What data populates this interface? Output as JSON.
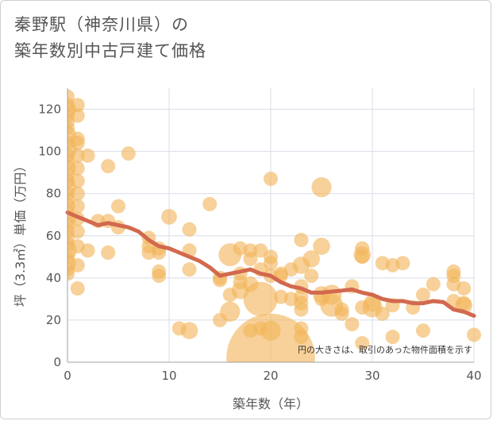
{
  "title_line1": "秦野駅（神奈川県）の",
  "title_line2": "築年数別中古戸建て価格",
  "chart_data": {
    "type": "scatter",
    "title": "秦野駅（神奈川県）の築年数別中古戸建て価格",
    "xlabel": "築年数（年）",
    "ylabel": "坪（3.3㎡）単価（万円）",
    "xlim": [
      0,
      40
    ],
    "ylim": [
      0,
      130
    ],
    "xticks": [
      0,
      10,
      20,
      30,
      40
    ],
    "yticks": [
      0,
      20,
      40,
      60,
      80,
      100,
      120
    ],
    "grid": true,
    "note": "円の大きさは、取引のあった物件面積を示す",
    "colors": {
      "bubble": "#f2b45a",
      "trend": "#d2694e",
      "grid": "#d8dde6",
      "axis": "#a0a0a0",
      "text": "#555555"
    },
    "points": [
      {
        "x": 0,
        "y": 126,
        "s": 1
      },
      {
        "x": 0,
        "y": 122,
        "s": 1
      },
      {
        "x": 0,
        "y": 120,
        "s": 1.2
      },
      {
        "x": 0,
        "y": 117,
        "s": 1
      },
      {
        "x": 0,
        "y": 114,
        "s": 1
      },
      {
        "x": 0,
        "y": 111,
        "s": 1
      },
      {
        "x": 0,
        "y": 108,
        "s": 1.2
      },
      {
        "x": 0,
        "y": 104,
        "s": 1
      },
      {
        "x": 0,
        "y": 101,
        "s": 1.3
      },
      {
        "x": 0,
        "y": 98,
        "s": 1
      },
      {
        "x": 0,
        "y": 95,
        "s": 1
      },
      {
        "x": 0,
        "y": 92,
        "s": 1.2
      },
      {
        "x": 0,
        "y": 89,
        "s": 1
      },
      {
        "x": 0,
        "y": 86,
        "s": 1
      },
      {
        "x": 0,
        "y": 83,
        "s": 1.2
      },
      {
        "x": 0,
        "y": 80,
        "s": 1
      },
      {
        "x": 0,
        "y": 77,
        "s": 1
      },
      {
        "x": 0,
        "y": 74,
        "s": 1.1
      },
      {
        "x": 0,
        "y": 71,
        "s": 1
      },
      {
        "x": 0,
        "y": 68,
        "s": 1.2
      },
      {
        "x": 0,
        "y": 65,
        "s": 1
      },
      {
        "x": 0,
        "y": 62,
        "s": 1
      },
      {
        "x": 0,
        "y": 59,
        "s": 1
      },
      {
        "x": 0,
        "y": 56,
        "s": 1
      },
      {
        "x": 0,
        "y": 53,
        "s": 1.3
      },
      {
        "x": 0,
        "y": 50,
        "s": 1
      },
      {
        "x": 0,
        "y": 47,
        "s": 1.2
      },
      {
        "x": 0,
        "y": 44,
        "s": 1
      },
      {
        "x": 0,
        "y": 42,
        "s": 1
      },
      {
        "x": 1,
        "y": 122,
        "s": 1
      },
      {
        "x": 1,
        "y": 117,
        "s": 1
      },
      {
        "x": 1,
        "y": 106,
        "s": 1
      },
      {
        "x": 1,
        "y": 104,
        "s": 1
      },
      {
        "x": 1,
        "y": 98,
        "s": 1
      },
      {
        "x": 1,
        "y": 92,
        "s": 1
      },
      {
        "x": 1,
        "y": 86,
        "s": 1
      },
      {
        "x": 1,
        "y": 80,
        "s": 1
      },
      {
        "x": 1,
        "y": 74,
        "s": 1
      },
      {
        "x": 1,
        "y": 68,
        "s": 1
      },
      {
        "x": 1,
        "y": 62,
        "s": 1
      },
      {
        "x": 1,
        "y": 55,
        "s": 1
      },
      {
        "x": 1,
        "y": 46,
        "s": 1
      },
      {
        "x": 1,
        "y": 35,
        "s": 1
      },
      {
        "x": 2,
        "y": 98,
        "s": 1
      },
      {
        "x": 2,
        "y": 53,
        "s": 1
      },
      {
        "x": 3,
        "y": 67,
        "s": 1
      },
      {
        "x": 4,
        "y": 93,
        "s": 1
      },
      {
        "x": 4,
        "y": 67,
        "s": 1
      },
      {
        "x": 4,
        "y": 52,
        "s": 1
      },
      {
        "x": 5,
        "y": 74,
        "s": 1
      },
      {
        "x": 5,
        "y": 64,
        "s": 1
      },
      {
        "x": 6,
        "y": 99,
        "s": 1
      },
      {
        "x": 8,
        "y": 59,
        "s": 1
      },
      {
        "x": 8,
        "y": 55,
        "s": 1
      },
      {
        "x": 8,
        "y": 52,
        "s": 1
      },
      {
        "x": 9,
        "y": 54,
        "s": 1
      },
      {
        "x": 9,
        "y": 52,
        "s": 1
      },
      {
        "x": 9,
        "y": 43,
        "s": 1
      },
      {
        "x": 9,
        "y": 41,
        "s": 1
      },
      {
        "x": 10,
        "y": 69,
        "s": 1.1
      },
      {
        "x": 11,
        "y": 16,
        "s": 1
      },
      {
        "x": 12,
        "y": 63,
        "s": 1
      },
      {
        "x": 12,
        "y": 53,
        "s": 1
      },
      {
        "x": 12,
        "y": 44,
        "s": 1
      },
      {
        "x": 12,
        "y": 15,
        "s": 1.2
      },
      {
        "x": 14,
        "y": 75,
        "s": 1
      },
      {
        "x": 15,
        "y": 40,
        "s": 1
      },
      {
        "x": 15,
        "y": 39,
        "s": 1
      },
      {
        "x": 15,
        "y": 20,
        "s": 1
      },
      {
        "x": 16,
        "y": 51,
        "s": 1.6
      },
      {
        "x": 16,
        "y": 32,
        "s": 1
      },
      {
        "x": 16,
        "y": 24,
        "s": 1.4
      },
      {
        "x": 17,
        "y": 54,
        "s": 1
      },
      {
        "x": 17,
        "y": 42,
        "s": 1
      },
      {
        "x": 17,
        "y": 38,
        "s": 1
      },
      {
        "x": 17,
        "y": 34,
        "s": 1.2
      },
      {
        "x": 18,
        "y": 53,
        "s": 1
      },
      {
        "x": 18,
        "y": 49,
        "s": 1
      },
      {
        "x": 18,
        "y": 37,
        "s": 1.1
      },
      {
        "x": 18,
        "y": 15,
        "s": 1
      },
      {
        "x": 19,
        "y": 53,
        "s": 1
      },
      {
        "x": 19,
        "y": 44,
        "s": 1
      },
      {
        "x": 19,
        "y": 30,
        "s": 2.4
      },
      {
        "x": 19,
        "y": 16,
        "s": 1
      },
      {
        "x": 20,
        "y": 87,
        "s": 1
      },
      {
        "x": 20,
        "y": 50,
        "s": 1
      },
      {
        "x": 20,
        "y": 47,
        "s": 1
      },
      {
        "x": 20,
        "y": 41,
        "s": 1
      },
      {
        "x": 20,
        "y": 15,
        "s": 1.4
      },
      {
        "x": 20,
        "y": 2,
        "s": 6.2
      },
      {
        "x": 21,
        "y": 42,
        "s": 1
      },
      {
        "x": 21,
        "y": 41,
        "s": 1
      },
      {
        "x": 21,
        "y": 31,
        "s": 1
      },
      {
        "x": 22,
        "y": 44,
        "s": 1
      },
      {
        "x": 22,
        "y": 30,
        "s": 1
      },
      {
        "x": 23,
        "y": 58,
        "s": 1
      },
      {
        "x": 23,
        "y": 46,
        "s": 1.2
      },
      {
        "x": 23,
        "y": 36,
        "s": 1
      },
      {
        "x": 23,
        "y": 31,
        "s": 1
      },
      {
        "x": 23,
        "y": 28,
        "s": 1
      },
      {
        "x": 23,
        "y": 25,
        "s": 1
      },
      {
        "x": 23,
        "y": 16,
        "s": 1
      },
      {
        "x": 23,
        "y": 12,
        "s": 1
      },
      {
        "x": 24,
        "y": 49,
        "s": 1.2
      },
      {
        "x": 24,
        "y": 41,
        "s": 1
      },
      {
        "x": 25,
        "y": 83,
        "s": 1.4
      },
      {
        "x": 25,
        "y": 55,
        "s": 1.2
      },
      {
        "x": 25,
        "y": 32,
        "s": 1.2
      },
      {
        "x": 25,
        "y": 30,
        "s": 1
      },
      {
        "x": 26,
        "y": 32,
        "s": 1.4
      },
      {
        "x": 26,
        "y": 27,
        "s": 1.6
      },
      {
        "x": 27,
        "y": 25,
        "s": 1
      },
      {
        "x": 27,
        "y": 23,
        "s": 1
      },
      {
        "x": 28,
        "y": 36,
        "s": 1
      },
      {
        "x": 28,
        "y": 18,
        "s": 1
      },
      {
        "x": 29,
        "y": 54,
        "s": 1
      },
      {
        "x": 29,
        "y": 51,
        "s": 1.2
      },
      {
        "x": 29,
        "y": 50,
        "s": 1
      },
      {
        "x": 29,
        "y": 26,
        "s": 1
      },
      {
        "x": 29,
        "y": 9,
        "s": 1
      },
      {
        "x": 30,
        "y": 28,
        "s": 1.2
      },
      {
        "x": 30,
        "y": 26,
        "s": 1.4
      },
      {
        "x": 31,
        "y": 47,
        "s": 1
      },
      {
        "x": 31,
        "y": 23,
        "s": 1
      },
      {
        "x": 32,
        "y": 46,
        "s": 1
      },
      {
        "x": 32,
        "y": 27,
        "s": 1
      },
      {
        "x": 32,
        "y": 12,
        "s": 1
      },
      {
        "x": 33,
        "y": 47,
        "s": 1
      },
      {
        "x": 34,
        "y": 26,
        "s": 1
      },
      {
        "x": 35,
        "y": 32,
        "s": 1
      },
      {
        "x": 35,
        "y": 15,
        "s": 1
      },
      {
        "x": 36,
        "y": 37,
        "s": 1
      },
      {
        "x": 38,
        "y": 43,
        "s": 1
      },
      {
        "x": 38,
        "y": 41,
        "s": 1
      },
      {
        "x": 38,
        "y": 37,
        "s": 1
      },
      {
        "x": 38,
        "y": 29,
        "s": 1
      },
      {
        "x": 39,
        "y": 35,
        "s": 1
      },
      {
        "x": 39,
        "y": 28,
        "s": 1
      },
      {
        "x": 39,
        "y": 27,
        "s": 1.2
      },
      {
        "x": 40,
        "y": 13,
        "s": 1
      }
    ],
    "trend": {
      "x": [
        0,
        1,
        2,
        3,
        4,
        5,
        6,
        7,
        8,
        9,
        10,
        11,
        12,
        13,
        14,
        15,
        16,
        17,
        18,
        19,
        20,
        21,
        22,
        23,
        24,
        25,
        26,
        27,
        28,
        29,
        30,
        31,
        32,
        33,
        34,
        35,
        36,
        37,
        38,
        39,
        40
      ],
      "y": [
        71,
        69,
        67,
        65,
        66,
        65,
        64,
        62,
        58,
        55,
        54,
        52,
        50,
        48,
        45,
        41,
        42,
        43,
        44,
        42,
        41,
        38,
        36,
        35,
        33,
        33,
        33.5,
        34,
        34.5,
        33,
        32,
        30,
        29,
        29,
        28,
        28,
        29,
        28.5,
        25,
        24,
        22
      ]
    }
  }
}
